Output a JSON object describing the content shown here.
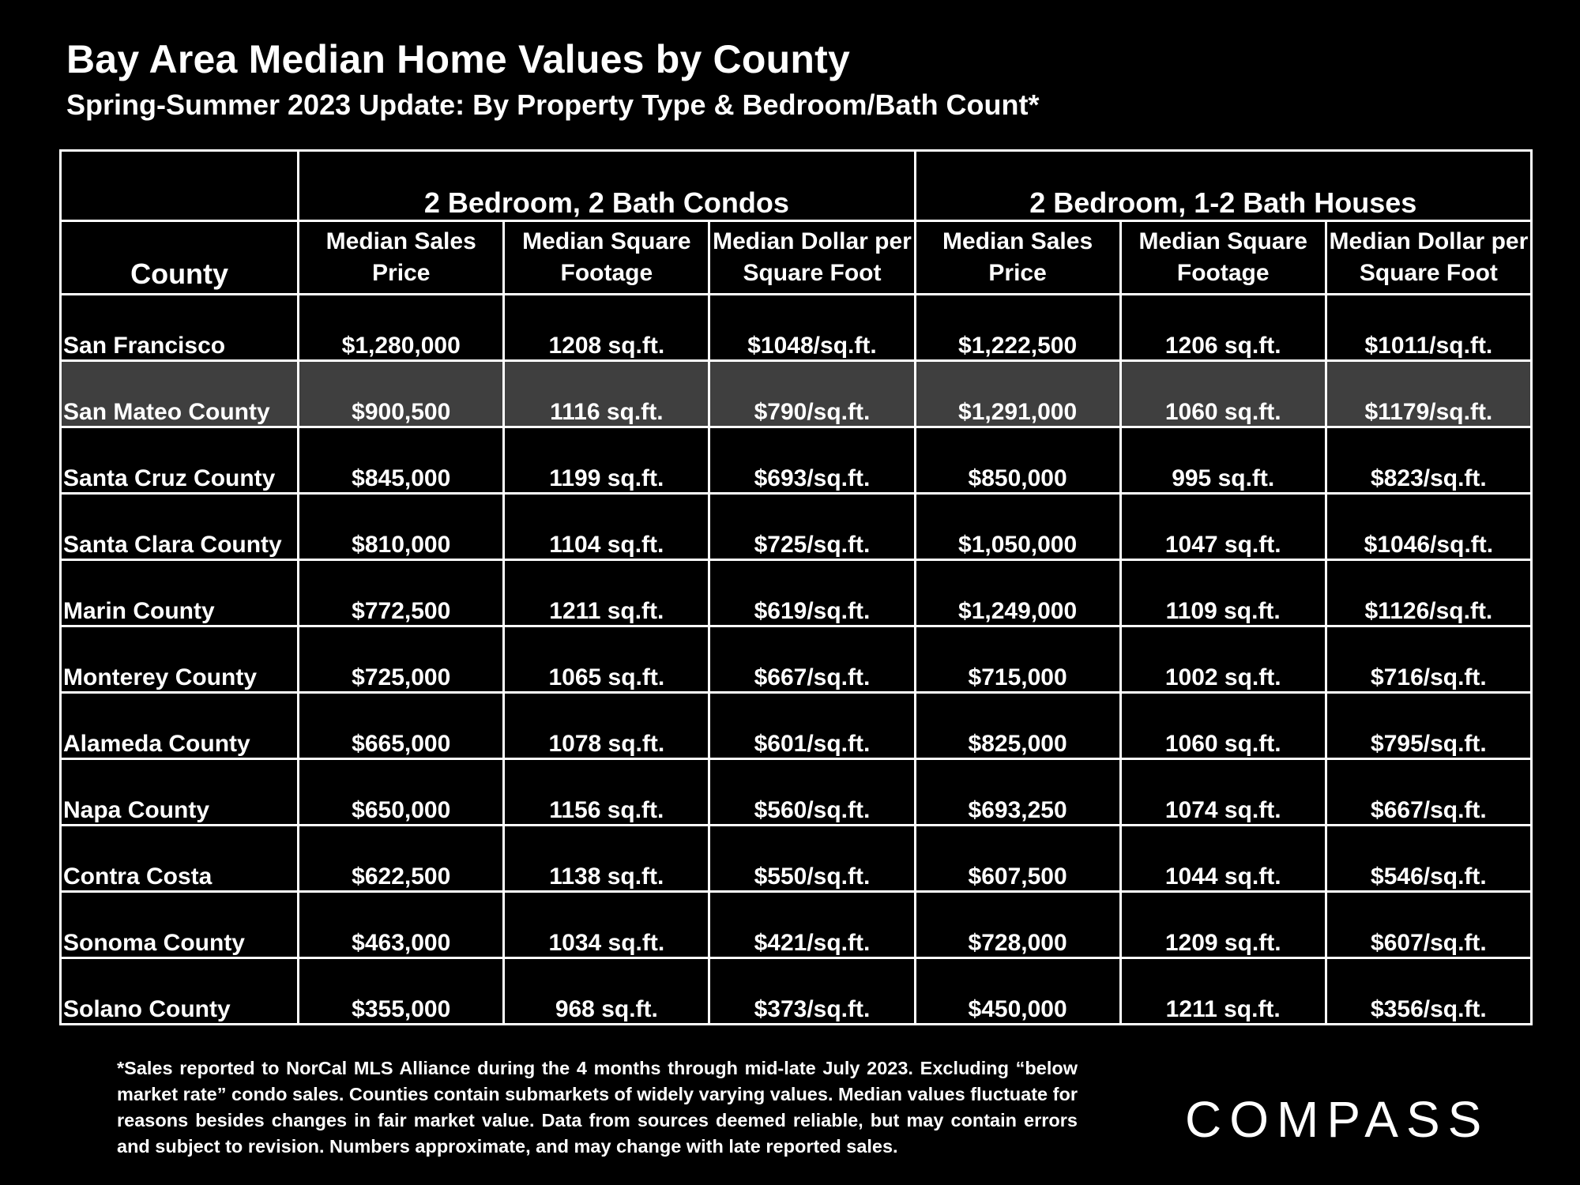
{
  "title": "Bay Area Median Home Values by County",
  "subtitle": "Spring-Summer 2023 Update:  By Property Type & Bedroom/Bath Count*",
  "chart_data": {
    "type": "table",
    "title": "Bay Area Median Home Values by County",
    "subtitle": "Spring-Summer 2023 Update:  By Property Type & Bedroom/Bath Count*",
    "groups": [
      "2 Bedroom, 2 Bath Condos",
      "2 Bedroom, 1-2 Bath Houses"
    ],
    "county_header": "County",
    "columns": [
      "Median Sales Price",
      "Median Square Footage",
      "Median Dollar per Square Foot",
      "Median Sales Price",
      "Median Square Footage",
      "Median Dollar per Square Foot"
    ],
    "rows": [
      {
        "county": "San Francisco",
        "cells": [
          "$1,280,000",
          "1208 sq.ft.",
          "$1048/sq.ft.",
          "$1,222,500",
          "1206 sq.ft.",
          "$1011/sq.ft."
        ]
      },
      {
        "county": "San Mateo County",
        "cells": [
          "$900,500",
          "1116 sq.ft.",
          "$790/sq.ft.",
          "$1,291,000",
          "1060 sq.ft.",
          "$1179/sq.ft."
        ],
        "highlight": true
      },
      {
        "county": "Santa Cruz County",
        "cells": [
          "$845,000",
          "1199 sq.ft.",
          "$693/sq.ft.",
          "$850,000",
          "995 sq.ft.",
          "$823/sq.ft."
        ]
      },
      {
        "county": "Santa Clara County",
        "cells": [
          "$810,000",
          "1104 sq.ft.",
          "$725/sq.ft.",
          "$1,050,000",
          "1047 sq.ft.",
          "$1046/sq.ft."
        ]
      },
      {
        "county": "Marin County",
        "cells": [
          "$772,500",
          "1211 sq.ft.",
          "$619/sq.ft.",
          "$1,249,000",
          "1109 sq.ft.",
          "$1126/sq.ft."
        ]
      },
      {
        "county": "Monterey County",
        "cells": [
          "$725,000",
          "1065 sq.ft.",
          "$667/sq.ft.",
          "$715,000",
          "1002 sq.ft.",
          "$716/sq.ft."
        ]
      },
      {
        "county": "Alameda County",
        "cells": [
          "$665,000",
          "1078 sq.ft.",
          "$601/sq.ft.",
          "$825,000",
          "1060 sq.ft.",
          "$795/sq.ft."
        ]
      },
      {
        "county": "Napa County",
        "cells": [
          "$650,000",
          "1156 sq.ft.",
          "$560/sq.ft.",
          "$693,250",
          "1074 sq.ft.",
          "$667/sq.ft."
        ]
      },
      {
        "county": "Contra Costa",
        "cells": [
          "$622,500",
          "1138 sq.ft.",
          "$550/sq.ft.",
          "$607,500",
          "1044 sq.ft.",
          "$546/sq.ft."
        ]
      },
      {
        "county": "Sonoma County",
        "cells": [
          "$463,000",
          "1034 sq.ft.",
          "$421/sq.ft.",
          "$728,000",
          "1209 sq.ft.",
          "$607/sq.ft."
        ]
      },
      {
        "county": "Solano County",
        "cells": [
          "$355,000",
          "968 sq.ft.",
          "$373/sq.ft.",
          "$450,000",
          "1211 sq.ft.",
          "$356/sq.ft."
        ]
      }
    ]
  },
  "colors": {
    "background": "#000000",
    "text": "#ffffff",
    "grid": "#ffffff",
    "highlight_row": "#3f3f3f"
  },
  "footnote": "*Sales reported to NorCal MLS Alliance during the 4 months through mid-late July 2023. Excluding “below market rate” condo sales. Counties contain submarkets of widely varying values. Median values fluctuate for reasons besides changes in fair market value. Data from sources deemed reliable, but may contain errors and subject to revision.  Numbers approximate, and may change with late reported sales.",
  "logo": "COMPASS"
}
